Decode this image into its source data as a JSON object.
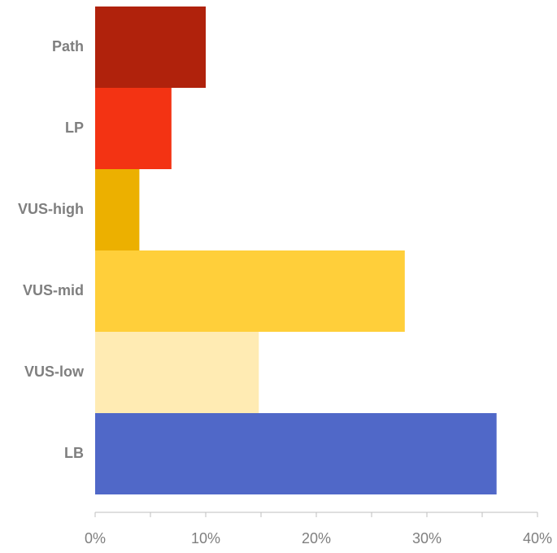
{
  "chart_data": {
    "type": "hbar",
    "categories": [
      "Path",
      "LP",
      "VUS-high",
      "VUS-mid",
      "VUS-low",
      "LB"
    ],
    "values": [
      10,
      6.9,
      4,
      28,
      14.8,
      36.3
    ],
    "colors": [
      "#b0220c",
      "#f33313",
      "#ecb000",
      "#ffcf3a",
      "#ffebb3",
      "#5068c8"
    ],
    "xlim": [
      0,
      40
    ],
    "xticks": [
      {
        "value": 0,
        "label": "0%"
      },
      {
        "value": 10,
        "label": "10%"
      },
      {
        "value": 20,
        "label": "20%"
      },
      {
        "value": 30,
        "label": "30%"
      },
      {
        "value": 40,
        "label": "40%"
      }
    ],
    "xminorticks": [
      5,
      15,
      25,
      35
    ]
  }
}
